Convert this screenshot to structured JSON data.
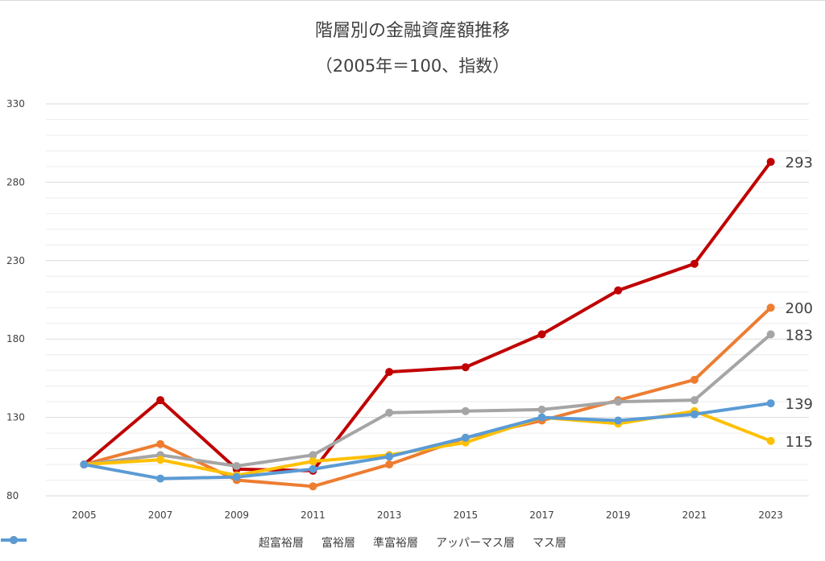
{
  "chart_data": {
    "type": "line",
    "title": "階層別の金融資産額推移",
    "subtitle": "（2005年＝100、指数）",
    "xlabel": "",
    "ylabel": "",
    "x": [
      "2005",
      "2007",
      "2009",
      "2011",
      "2013",
      "2015",
      "2017",
      "2019",
      "2021",
      "2023"
    ],
    "yticks": [
      "330",
      "280",
      "230",
      "180",
      "130",
      "80"
    ],
    "ylim": [
      80,
      330
    ],
    "grid": true,
    "legend_position": "bottom",
    "series": [
      {
        "name": "超富裕層",
        "color": "#c00000",
        "values": [
          100,
          141,
          97,
          96,
          159,
          162,
          183,
          211,
          228,
          293
        ],
        "end_label": "293"
      },
      {
        "name": "富裕層",
        "color": "#ed7d31",
        "values": [
          100,
          113,
          90,
          86,
          100,
          117,
          128,
          141,
          154,
          200
        ],
        "end_label": "200"
      },
      {
        "name": "準富裕層",
        "color": "#a5a5a5",
        "values": [
          100,
          106,
          99,
          106,
          133,
          134,
          135,
          140,
          141,
          183
        ],
        "end_label": "183"
      },
      {
        "name": "アッパーマス層",
        "color": "#ffc000",
        "values": [
          100,
          103,
          93,
          102,
          106,
          114,
          130,
          126,
          134,
          115
        ],
        "end_label": "115"
      },
      {
        "name": "マス層",
        "color": "#5b9bd5",
        "values": [
          100,
          91,
          92,
          97,
          105,
          117,
          130,
          128,
          132,
          139
        ],
        "end_label": "139"
      }
    ]
  }
}
